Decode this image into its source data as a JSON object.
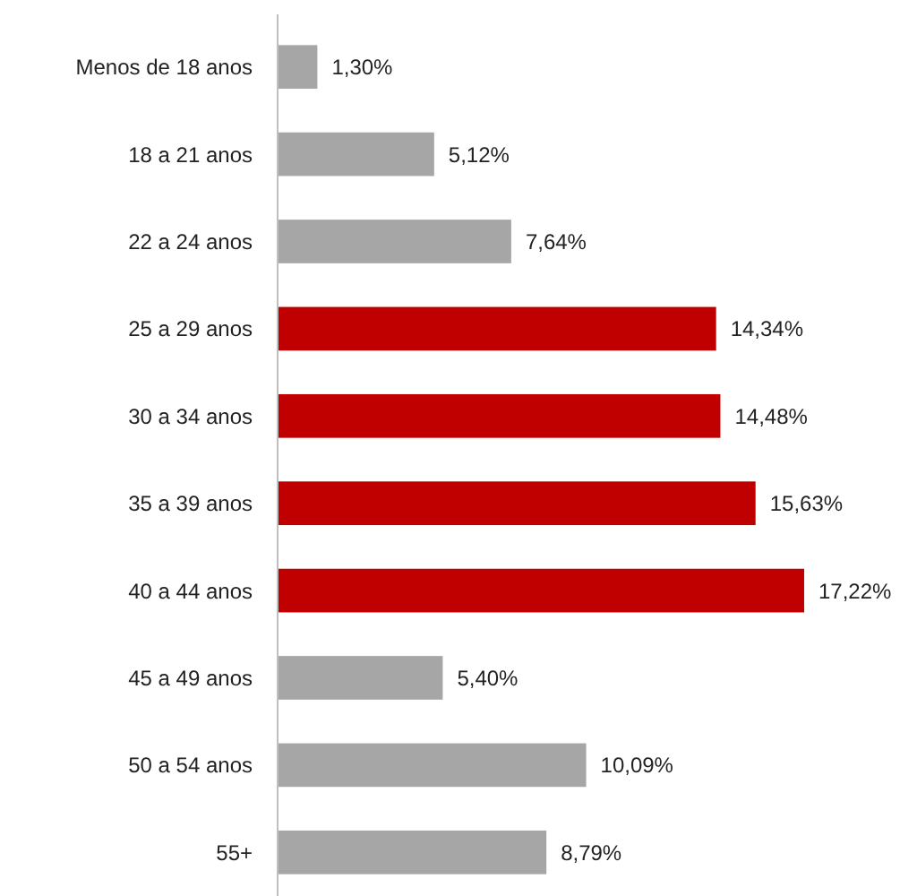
{
  "chart_data": {
    "type": "bar",
    "orientation": "horizontal",
    "categories": [
      "Menos de 18 anos",
      "18 a 21 anos",
      "22 a 24 anos",
      "25 a 29 anos",
      "30 a 34 anos",
      "35 a 39 anos",
      "40 a 44 anos",
      "45 a 49 anos",
      "50 a 54 anos",
      "55+"
    ],
    "values": [
      1.3,
      5.12,
      7.64,
      14.34,
      14.48,
      15.63,
      17.22,
      5.4,
      10.09,
      8.79
    ],
    "colors": [
      "#a6a6a6",
      "#a6a6a6",
      "#a6a6a6",
      "#c00000",
      "#c00000",
      "#c00000",
      "#c00000",
      "#a6a6a6",
      "#a6a6a6",
      "#a6a6a6"
    ],
    "value_labels": [
      "1,30%",
      "5,12%",
      "7,64%",
      "14,34%",
      "14,48%",
      "15,63%",
      "17,22%",
      "5,40%",
      "10,09%",
      "8,79%"
    ]
  }
}
